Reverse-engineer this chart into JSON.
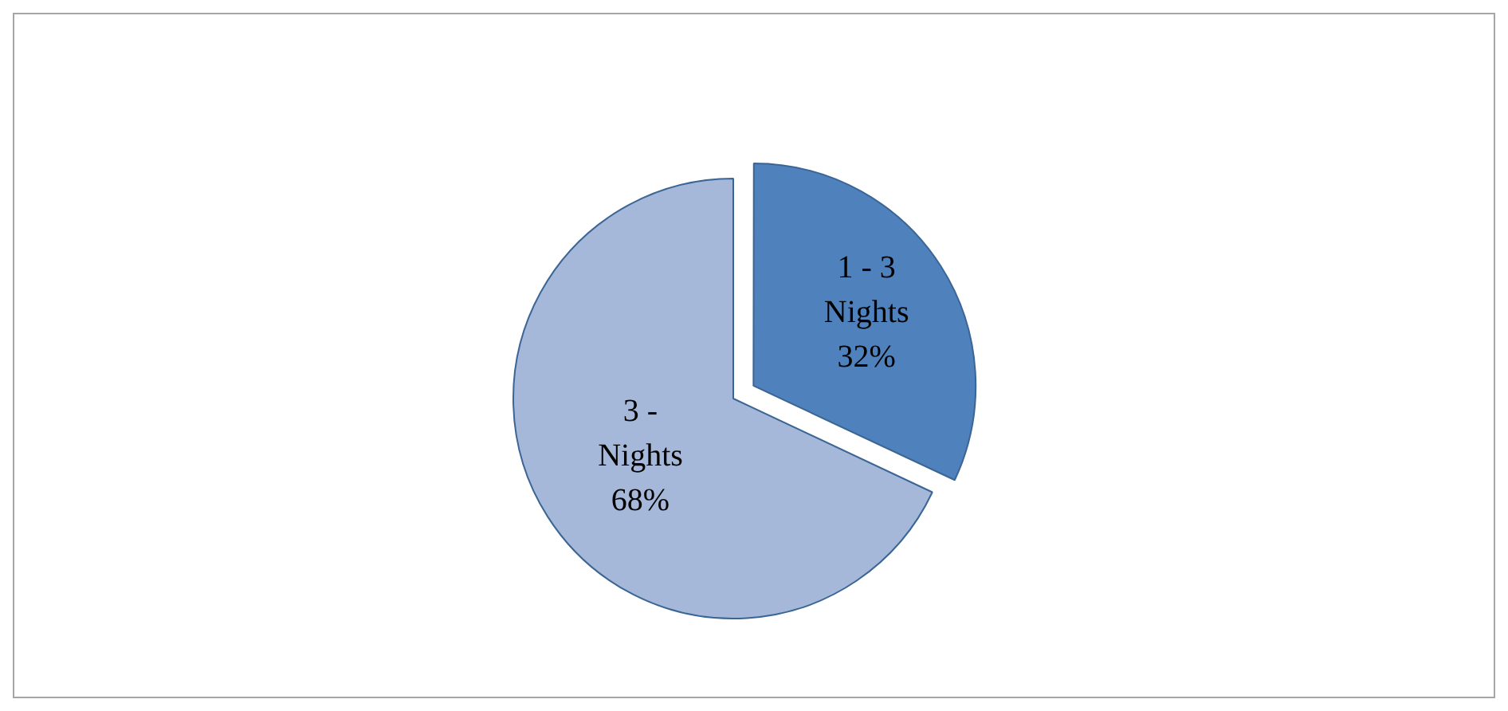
{
  "chart_data": {
    "type": "pie",
    "categories": [
      "1 - 3 Nights",
      "3 - Nights"
    ],
    "values": [
      32,
      68
    ],
    "colors": [
      "#4f81bd",
      "#a5b8d9"
    ],
    "value_labels": [
      "32%",
      "68%"
    ],
    "legend": false
  }
}
